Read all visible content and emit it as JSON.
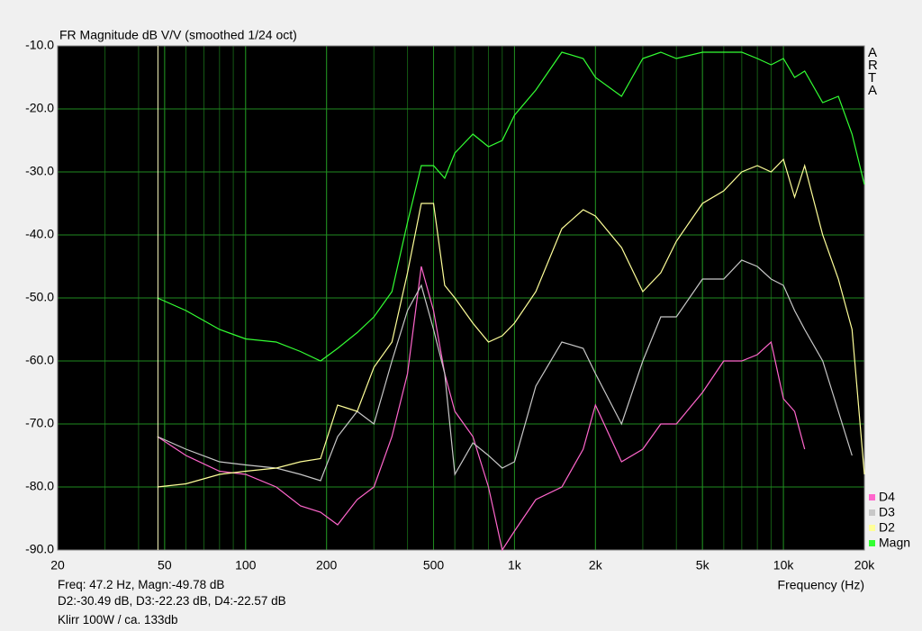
{
  "chart_data": {
    "type": "line",
    "title": "FR Magnitude dB V/V (smoothed 1/24 oct)",
    "x_label": "Frequency (Hz)",
    "side_label": "ARTA",
    "info": [
      "Freq: 47.2 Hz, Magn:-49.78 dB",
      "D2:-30.49 dB, D3:-22.23 dB, D4:-22.57 dB",
      "Klirr 100W / ca. 133db"
    ],
    "cursor_x": 47.2,
    "x_log": true,
    "grid": true,
    "minor_grid": true,
    "xlim": [
      20,
      20000
    ],
    "ylim": [
      -90,
      -10
    ],
    "xticks": [
      20,
      50,
      100,
      200,
      500,
      {
        "value": 1000,
        "label": "1k"
      },
      {
        "value": 2000,
        "label": "2k"
      },
      {
        "value": 5000,
        "label": "5k"
      },
      {
        "value": 10000,
        "label": "10k"
      },
      {
        "value": 20000,
        "label": "20k"
      }
    ],
    "yticks": [
      {
        "value": -90,
        "label": "-90.0"
      },
      {
        "value": -80,
        "label": "-80.0"
      },
      {
        "value": -70,
        "label": "-70.0"
      },
      {
        "value": -60,
        "label": "-60.0"
      },
      {
        "value": -50,
        "label": "-50.0"
      },
      {
        "value": -40,
        "label": "-40.0"
      },
      {
        "value": -30,
        "label": "-30.0"
      },
      {
        "value": -20,
        "label": "-20.0"
      },
      {
        "value": -10,
        "label": "-10.0"
      }
    ],
    "x": [
      47,
      60,
      80,
      100,
      130,
      160,
      190,
      220,
      260,
      300,
      350,
      400,
      450,
      500,
      550,
      600,
      700,
      800,
      900,
      1000,
      1200,
      1500,
      1800,
      2000,
      2500,
      3000,
      3500,
      4000,
      5000,
      6000,
      7000,
      8000,
      9000,
      10000,
      11000,
      12000,
      14000,
      16000,
      18000,
      20000
    ],
    "series": [
      {
        "name": "D4",
        "color": "#ff66cc",
        "values": [
          -72,
          -75,
          -77.5,
          -78,
          -80,
          -83,
          -84,
          -86,
          -82,
          -80,
          -72,
          -62,
          -45,
          -52,
          -62,
          -68,
          -72,
          -80,
          -90,
          -87,
          -82,
          -80,
          -74,
          -67,
          -76,
          -74,
          -70,
          -70,
          -65,
          -60,
          -60,
          -59,
          -57,
          -66,
          -68,
          -74,
          null,
          null,
          null,
          null
        ]
      },
      {
        "name": "D3",
        "color": "#c8c8c8",
        "values": [
          -72,
          -74,
          -76,
          -76.5,
          -77,
          -78,
          -79,
          -72,
          -68,
          -70,
          -60,
          -52,
          -48,
          -55,
          -62,
          -78,
          -73,
          -75,
          -77,
          -76,
          -64,
          -57,
          -58,
          -62,
          -70,
          -60,
          -53,
          -53,
          -47,
          -47,
          -44,
          -45,
          -47,
          -48,
          -52,
          -55,
          -60,
          -68,
          -75,
          null
        ]
      },
      {
        "name": "D2",
        "color": "#ffff99",
        "values": [
          -80,
          -79.5,
          -78,
          -77.5,
          -77,
          -76,
          -75.5,
          -67,
          -68,
          -61,
          -57,
          -46,
          -35,
          -35,
          -48,
          -50,
          -54,
          -57,
          -56,
          -54,
          -49,
          -39,
          -36,
          -37,
          -42,
          -49,
          -46,
          -41,
          -35,
          -33,
          -30,
          -29,
          -30,
          -28,
          -34,
          -29,
          -40,
          -47,
          -55,
          -78
        ]
      },
      {
        "name": "Magn",
        "color": "#33ff33",
        "values": [
          -50,
          -52,
          -55,
          -56.5,
          -57,
          -58.5,
          -60,
          -58,
          -55.5,
          -53,
          -49,
          -38,
          -29,
          -29,
          -31,
          -27,
          -24,
          -26,
          -25,
          -21,
          -17,
          -11,
          -12,
          -15,
          -18,
          -12,
          -11,
          -12,
          -11,
          -11,
          -11,
          -12,
          -13,
          -12,
          -15,
          -14,
          -19,
          -18,
          -24,
          -32
        ]
      }
    ]
  }
}
